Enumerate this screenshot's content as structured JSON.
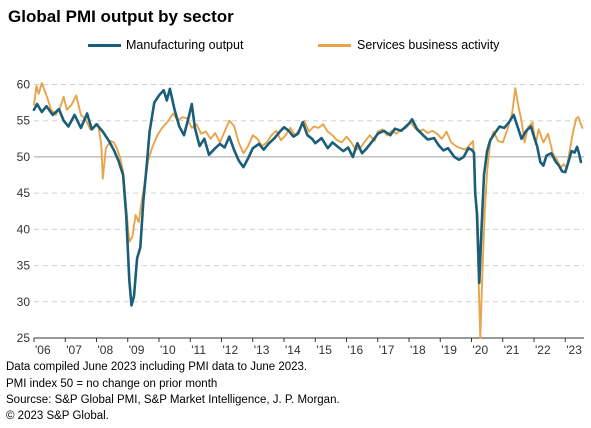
{
  "chart_data": {
    "type": "line",
    "title": "Global PMI output by sector",
    "ylim": [
      25,
      62
    ],
    "yticks": [
      25,
      30,
      35,
      40,
      45,
      50,
      55,
      60
    ],
    "xlim": [
      2006.0,
      2023.6
    ],
    "xtick_labels": [
      {
        "label": "'06",
        "year": 2006
      },
      {
        "label": "'07",
        "year": 2007
      },
      {
        "label": "'08",
        "year": 2008
      },
      {
        "label": "'09",
        "year": 2009
      },
      {
        "label": "'10",
        "year": 2010
      },
      {
        "label": "'11",
        "year": 2011
      },
      {
        "label": "'12",
        "year": 2012
      },
      {
        "label": "'13",
        "year": 2013
      },
      {
        "label": "'14",
        "year": 2014
      },
      {
        "label": "'15",
        "year": 2015
      },
      {
        "label": "'16",
        "year": 2016
      },
      {
        "label": "'17",
        "year": 2017
      },
      {
        "label": "'18",
        "year": 2018
      },
      {
        "label": "'19",
        "year": 2019
      },
      {
        "label": "'20",
        "year": 2020
      },
      {
        "label": "'21",
        "year": 2021
      },
      {
        "label": "'22",
        "year": 2022
      },
      {
        "label": "'23",
        "year": 2023
      }
    ],
    "reference_line": 50,
    "grid": "horizontal dashed",
    "legend_position": "top",
    "series": [
      {
        "name": "Manufacturing output",
        "color": "#1a5e7a",
        "points": [
          [
            2006.0,
            56.5
          ],
          [
            2006.1,
            57.3
          ],
          [
            2006.25,
            56.2
          ],
          [
            2006.4,
            57.0
          ],
          [
            2006.6,
            55.8
          ],
          [
            2006.8,
            56.6
          ],
          [
            2006.95,
            55.0
          ],
          [
            2007.1,
            54.2
          ],
          [
            2007.3,
            55.8
          ],
          [
            2007.5,
            54.0
          ],
          [
            2007.7,
            56.0
          ],
          [
            2007.85,
            53.8
          ],
          [
            2008.0,
            54.5
          ],
          [
            2008.2,
            53.5
          ],
          [
            2008.4,
            52.2
          ],
          [
            2008.55,
            51.0
          ],
          [
            2008.7,
            49.5
          ],
          [
            2008.85,
            47.5
          ],
          [
            2008.95,
            42.0
          ],
          [
            2009.05,
            33.0
          ],
          [
            2009.12,
            29.5
          ],
          [
            2009.2,
            30.8
          ],
          [
            2009.3,
            36.0
          ],
          [
            2009.4,
            37.5
          ],
          [
            2009.5,
            44.0
          ],
          [
            2009.6,
            48.5
          ],
          [
            2009.7,
            53.5
          ],
          [
            2009.85,
            57.5
          ],
          [
            2010.0,
            58.5
          ],
          [
            2010.15,
            59.2
          ],
          [
            2010.25,
            57.8
          ],
          [
            2010.35,
            59.4
          ],
          [
            2010.5,
            56.5
          ],
          [
            2010.65,
            54.2
          ],
          [
            2010.8,
            53.0
          ],
          [
            2010.95,
            55.5
          ],
          [
            2011.05,
            57.3
          ],
          [
            2011.15,
            54.0
          ],
          [
            2011.3,
            51.5
          ],
          [
            2011.45,
            52.5
          ],
          [
            2011.6,
            50.3
          ],
          [
            2011.8,
            51.2
          ],
          [
            2011.95,
            51.8
          ],
          [
            2012.1,
            51.3
          ],
          [
            2012.25,
            52.8
          ],
          [
            2012.4,
            51.0
          ],
          [
            2012.55,
            49.5
          ],
          [
            2012.7,
            48.6
          ],
          [
            2012.85,
            49.8
          ],
          [
            2013.0,
            51.2
          ],
          [
            2013.2,
            51.8
          ],
          [
            2013.35,
            51.0
          ],
          [
            2013.5,
            51.8
          ],
          [
            2013.7,
            52.6
          ],
          [
            2013.85,
            53.4
          ],
          [
            2014.0,
            54.1
          ],
          [
            2014.15,
            53.6
          ],
          [
            2014.3,
            52.8
          ],
          [
            2014.45,
            53.2
          ],
          [
            2014.6,
            54.8
          ],
          [
            2014.75,
            53.0
          ],
          [
            2014.9,
            52.5
          ],
          [
            2015.0,
            51.9
          ],
          [
            2015.2,
            52.6
          ],
          [
            2015.4,
            51.2
          ],
          [
            2015.55,
            52.0
          ],
          [
            2015.75,
            51.3
          ],
          [
            2015.9,
            50.8
          ],
          [
            2016.05,
            51.3
          ],
          [
            2016.2,
            50.0
          ],
          [
            2016.35,
            51.9
          ],
          [
            2016.5,
            50.5
          ],
          [
            2016.65,
            51.2
          ],
          [
            2016.85,
            52.3
          ],
          [
            2017.0,
            53.2
          ],
          [
            2017.2,
            53.6
          ],
          [
            2017.4,
            53.0
          ],
          [
            2017.55,
            53.9
          ],
          [
            2017.75,
            53.6
          ],
          [
            2017.9,
            54.2
          ],
          [
            2018.0,
            54.6
          ],
          [
            2018.1,
            55.2
          ],
          [
            2018.25,
            53.9
          ],
          [
            2018.45,
            53.0
          ],
          [
            2018.6,
            52.4
          ],
          [
            2018.8,
            52.6
          ],
          [
            2018.95,
            51.6
          ],
          [
            2019.1,
            50.9
          ],
          [
            2019.25,
            51.2
          ],
          [
            2019.45,
            50.0
          ],
          [
            2019.6,
            49.6
          ],
          [
            2019.75,
            50.0
          ],
          [
            2019.9,
            51.2
          ],
          [
            2020.0,
            51.0
          ],
          [
            2020.08,
            50.6
          ],
          [
            2020.12,
            45.0
          ],
          [
            2020.18,
            42.0
          ],
          [
            2020.25,
            32.6
          ],
          [
            2020.32,
            40.0
          ],
          [
            2020.4,
            47.5
          ],
          [
            2020.5,
            50.8
          ],
          [
            2020.6,
            52.3
          ],
          [
            2020.75,
            53.3
          ],
          [
            2020.9,
            54.2
          ],
          [
            2021.05,
            54.0
          ],
          [
            2021.2,
            54.8
          ],
          [
            2021.35,
            55.8
          ],
          [
            2021.45,
            54.5
          ],
          [
            2021.6,
            52.5
          ],
          [
            2021.75,
            53.6
          ],
          [
            2021.9,
            54.2
          ],
          [
            2022.0,
            52.8
          ],
          [
            2022.1,
            51.5
          ],
          [
            2022.2,
            49.3
          ],
          [
            2022.3,
            48.8
          ],
          [
            2022.4,
            50.2
          ],
          [
            2022.55,
            50.5
          ],
          [
            2022.7,
            49.3
          ],
          [
            2022.8,
            48.8
          ],
          [
            2022.9,
            48.0
          ],
          [
            2023.0,
            47.9
          ],
          [
            2023.1,
            49.3
          ],
          [
            2023.2,
            50.8
          ],
          [
            2023.3,
            50.6
          ],
          [
            2023.38,
            51.4
          ],
          [
            2023.45,
            50.3
          ],
          [
            2023.5,
            49.3
          ]
        ]
      },
      {
        "name": "Services business activity",
        "color": "#e8a44a",
        "points": [
          [
            2006.0,
            57.2
          ],
          [
            2006.08,
            59.8
          ],
          [
            2006.15,
            58.7
          ],
          [
            2006.25,
            60.2
          ],
          [
            2006.4,
            58.5
          ],
          [
            2006.55,
            56.5
          ],
          [
            2006.7,
            55.8
          ],
          [
            2006.85,
            57.0
          ],
          [
            2006.95,
            58.3
          ],
          [
            2007.05,
            56.5
          ],
          [
            2007.2,
            57.2
          ],
          [
            2007.35,
            58.5
          ],
          [
            2007.5,
            55.8
          ],
          [
            2007.65,
            55.2
          ],
          [
            2007.8,
            53.8
          ],
          [
            2007.95,
            54.2
          ],
          [
            2008.05,
            54.5
          ],
          [
            2008.15,
            51.8
          ],
          [
            2008.2,
            47.0
          ],
          [
            2008.3,
            51.2
          ],
          [
            2008.45,
            52.2
          ],
          [
            2008.55,
            52.0
          ],
          [
            2008.65,
            51.2
          ],
          [
            2008.75,
            50.0
          ],
          [
            2008.85,
            48.0
          ],
          [
            2008.95,
            43.0
          ],
          [
            2009.05,
            38.3
          ],
          [
            2009.15,
            39.0
          ],
          [
            2009.25,
            42.0
          ],
          [
            2009.35,
            41.0
          ],
          [
            2009.45,
            44.0
          ],
          [
            2009.55,
            46.5
          ],
          [
            2009.65,
            49.5
          ],
          [
            2009.8,
            51.5
          ],
          [
            2009.95,
            53.0
          ],
          [
            2010.1,
            54.0
          ],
          [
            2010.3,
            55.0
          ],
          [
            2010.45,
            56.0
          ],
          [
            2010.6,
            55.0
          ],
          [
            2010.75,
            55.5
          ],
          [
            2010.9,
            55.3
          ],
          [
            2011.05,
            54.0
          ],
          [
            2011.2,
            54.5
          ],
          [
            2011.35,
            53.2
          ],
          [
            2011.5,
            53.5
          ],
          [
            2011.65,
            52.5
          ],
          [
            2011.8,
            53.3
          ],
          [
            2011.95,
            52.0
          ],
          [
            2012.1,
            53.5
          ],
          [
            2012.25,
            55.0
          ],
          [
            2012.4,
            54.3
          ],
          [
            2012.55,
            52.0
          ],
          [
            2012.7,
            50.5
          ],
          [
            2012.85,
            51.5
          ],
          [
            2013.0,
            53.0
          ],
          [
            2013.15,
            52.5
          ],
          [
            2013.3,
            51.5
          ],
          [
            2013.45,
            52.0
          ],
          [
            2013.6,
            53.0
          ],
          [
            2013.75,
            53.6
          ],
          [
            2013.9,
            52.3
          ],
          [
            2014.05,
            53.0
          ],
          [
            2014.2,
            54.0
          ],
          [
            2014.35,
            53.0
          ],
          [
            2014.5,
            53.8
          ],
          [
            2014.65,
            55.0
          ],
          [
            2014.8,
            53.5
          ],
          [
            2014.95,
            54.2
          ],
          [
            2015.1,
            54.0
          ],
          [
            2015.25,
            54.5
          ],
          [
            2015.4,
            53.5
          ],
          [
            2015.55,
            53.0
          ],
          [
            2015.7,
            52.3
          ],
          [
            2015.85,
            52.0
          ],
          [
            2016.0,
            52.8
          ],
          [
            2016.15,
            52.0
          ],
          [
            2016.3,
            51.0
          ],
          [
            2016.45,
            51.3
          ],
          [
            2016.6,
            52.2
          ],
          [
            2016.75,
            53.0
          ],
          [
            2016.9,
            52.2
          ],
          [
            2017.0,
            53.5
          ],
          [
            2017.15,
            53.8
          ],
          [
            2017.3,
            53.0
          ],
          [
            2017.45,
            53.6
          ],
          [
            2017.6,
            53.2
          ],
          [
            2017.75,
            53.8
          ],
          [
            2017.9,
            54.0
          ],
          [
            2018.05,
            54.8
          ],
          [
            2018.15,
            54.2
          ],
          [
            2018.3,
            53.5
          ],
          [
            2018.45,
            53.8
          ],
          [
            2018.6,
            53.3
          ],
          [
            2018.75,
            53.6
          ],
          [
            2018.9,
            53.2
          ],
          [
            2019.05,
            52.5
          ],
          [
            2019.2,
            53.5
          ],
          [
            2019.35,
            52.0
          ],
          [
            2019.5,
            51.5
          ],
          [
            2019.65,
            51.2
          ],
          [
            2019.8,
            51.0
          ],
          [
            2019.95,
            51.7
          ],
          [
            2020.05,
            52.2
          ],
          [
            2020.1,
            47.0
          ],
          [
            2020.15,
            43.3
          ],
          [
            2020.22,
            34.0
          ],
          [
            2020.28,
            25.0
          ],
          [
            2020.35,
            34.0
          ],
          [
            2020.42,
            42.0
          ],
          [
            2020.5,
            48.0
          ],
          [
            2020.6,
            52.0
          ],
          [
            2020.7,
            53.5
          ],
          [
            2020.85,
            52.2
          ],
          [
            2021.0,
            52.0
          ],
          [
            2021.15,
            53.8
          ],
          [
            2021.3,
            56.0
          ],
          [
            2021.4,
            59.5
          ],
          [
            2021.5,
            57.0
          ],
          [
            2021.6,
            55.0
          ],
          [
            2021.7,
            52.0
          ],
          [
            2021.8,
            54.0
          ],
          [
            2021.95,
            54.8
          ],
          [
            2022.05,
            51.8
          ],
          [
            2022.15,
            53.8
          ],
          [
            2022.3,
            52.0
          ],
          [
            2022.45,
            53.2
          ],
          [
            2022.6,
            50.5
          ],
          [
            2022.75,
            49.5
          ],
          [
            2022.85,
            48.5
          ],
          [
            2022.95,
            49.0
          ],
          [
            2023.05,
            48.5
          ],
          [
            2023.15,
            51.0
          ],
          [
            2023.25,
            53.5
          ],
          [
            2023.35,
            55.3
          ],
          [
            2023.42,
            55.5
          ],
          [
            2023.5,
            54.5
          ],
          [
            2023.55,
            54.0
          ]
        ]
      }
    ]
  },
  "footnotes": [
    "Data compiled June 2023 including PMI data to June 2023.",
    "PMI index 50 = no change on prior month",
    "Sourcse: S&P Global PMI, S&P Market Intelligence, J. P. Morgan.",
    "© 2023 S&P Global."
  ]
}
